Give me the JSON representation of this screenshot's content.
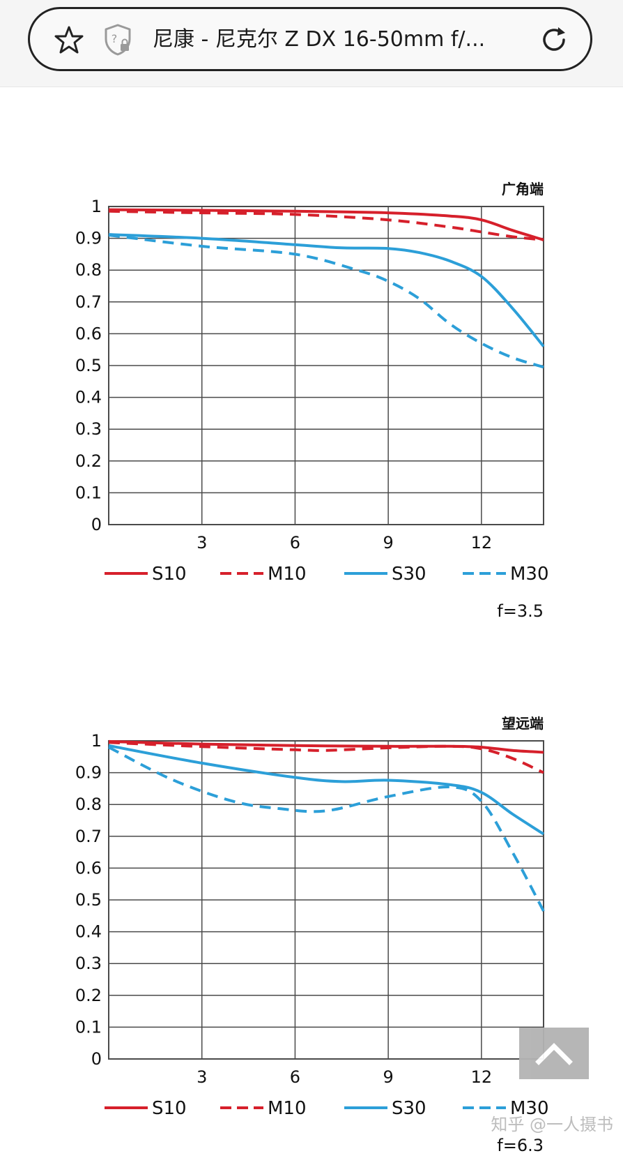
{
  "browser": {
    "page_title": "尼康 - 尼克尔 Z DX 16-50mm f/...",
    "icons": {
      "bookmark": "star-icon",
      "security": "shield-question-lock-icon",
      "reload": "reload-icon"
    }
  },
  "colors": {
    "sagittal": "#d6202b",
    "meridional": "#2c9fd8",
    "grid": "#4a4a4a"
  },
  "chart_data": [
    {
      "type": "line",
      "title": "广角端",
      "footer": "f=3.5",
      "xlim": [
        0,
        14
      ],
      "ylim": [
        0,
        1
      ],
      "x_ticks": [
        "3",
        "6",
        "9",
        "12"
      ],
      "y_ticks": [
        "0",
        "0.1",
        "0.2",
        "0.3",
        "0.4",
        "0.5",
        "0.6",
        "0.7",
        "0.8",
        "0.9",
        "1"
      ],
      "grid": true,
      "legend": "bottom",
      "series": [
        {
          "name": "S10",
          "color": "#d6202b",
          "dashed": false,
          "points": [
            [
              0,
              0.99
            ],
            [
              3,
              0.988
            ],
            [
              6,
              0.985
            ],
            [
              9,
              0.98
            ],
            [
              11,
              0.97
            ],
            [
              12,
              0.958
            ],
            [
              13,
              0.925
            ],
            [
              14,
              0.895
            ]
          ]
        },
        {
          "name": "M10",
          "color": "#d6202b",
          "dashed": true,
          "points": [
            [
              0,
              0.985
            ],
            [
              3,
              0.98
            ],
            [
              6,
              0.975
            ],
            [
              9,
              0.958
            ],
            [
              11,
              0.935
            ],
            [
              12,
              0.92
            ],
            [
              13,
              0.905
            ],
            [
              14,
              0.895
            ]
          ]
        },
        {
          "name": "S30",
          "color": "#2c9fd8",
          "dashed": false,
          "points": [
            [
              0,
              0.912
            ],
            [
              3,
              0.9
            ],
            [
              6,
              0.88
            ],
            [
              7.5,
              0.87
            ],
            [
              9,
              0.868
            ],
            [
              10,
              0.855
            ],
            [
              11,
              0.828
            ],
            [
              12,
              0.78
            ],
            [
              13,
              0.68
            ],
            [
              14,
              0.56
            ]
          ]
        },
        {
          "name": "M30",
          "color": "#2c9fd8",
          "dashed": true,
          "points": [
            [
              0,
              0.91
            ],
            [
              3,
              0.875
            ],
            [
              6,
              0.85
            ],
            [
              8,
              0.8
            ],
            [
              9,
              0.765
            ],
            [
              10,
              0.71
            ],
            [
              11,
              0.63
            ],
            [
              12,
              0.57
            ],
            [
              13,
              0.525
            ],
            [
              14,
              0.495
            ]
          ]
        }
      ]
    },
    {
      "type": "line",
      "title": "望远端",
      "footer": "f=6.3",
      "xlim": [
        0,
        14
      ],
      "ylim": [
        0,
        1
      ],
      "x_ticks": [
        "3",
        "6",
        "9",
        "12"
      ],
      "y_ticks": [
        "0",
        "0.1",
        "0.2",
        "0.3",
        "0.4",
        "0.5",
        "0.6",
        "0.7",
        "0.8",
        "0.9",
        "1"
      ],
      "grid": true,
      "legend": "bottom",
      "series": [
        {
          "name": "S10",
          "color": "#d6202b",
          "dashed": false,
          "points": [
            [
              0,
              0.998
            ],
            [
              3,
              0.99
            ],
            [
              6,
              0.985
            ],
            [
              9,
              0.983
            ],
            [
              11,
              0.983
            ],
            [
              12,
              0.98
            ],
            [
              13,
              0.97
            ],
            [
              14,
              0.964
            ]
          ]
        },
        {
          "name": "M10",
          "color": "#d6202b",
          "dashed": true,
          "points": [
            [
              0,
              0.995
            ],
            [
              3,
              0.982
            ],
            [
              6,
              0.972
            ],
            [
              7,
              0.97
            ],
            [
              9,
              0.978
            ],
            [
              11,
              0.983
            ],
            [
              12,
              0.975
            ],
            [
              13,
              0.945
            ],
            [
              14,
              0.9
            ]
          ]
        },
        {
          "name": "S30",
          "color": "#2c9fd8",
          "dashed": false,
          "points": [
            [
              0,
              0.985
            ],
            [
              3,
              0.93
            ],
            [
              6,
              0.885
            ],
            [
              7.5,
              0.872
            ],
            [
              9,
              0.876
            ],
            [
              11,
              0.862
            ],
            [
              12,
              0.838
            ],
            [
              13,
              0.77
            ],
            [
              14,
              0.707
            ]
          ]
        },
        {
          "name": "M30",
          "color": "#2c9fd8",
          "dashed": true,
          "points": [
            [
              0,
              0.98
            ],
            [
              2,
              0.88
            ],
            [
              4,
              0.81
            ],
            [
              5.5,
              0.787
            ],
            [
              7,
              0.78
            ],
            [
              9,
              0.825
            ],
            [
              11,
              0.855
            ],
            [
              12,
              0.81
            ],
            [
              13,
              0.65
            ],
            [
              14,
              0.465
            ]
          ]
        }
      ]
    }
  ],
  "watermark": "知乎 @一人摄书"
}
